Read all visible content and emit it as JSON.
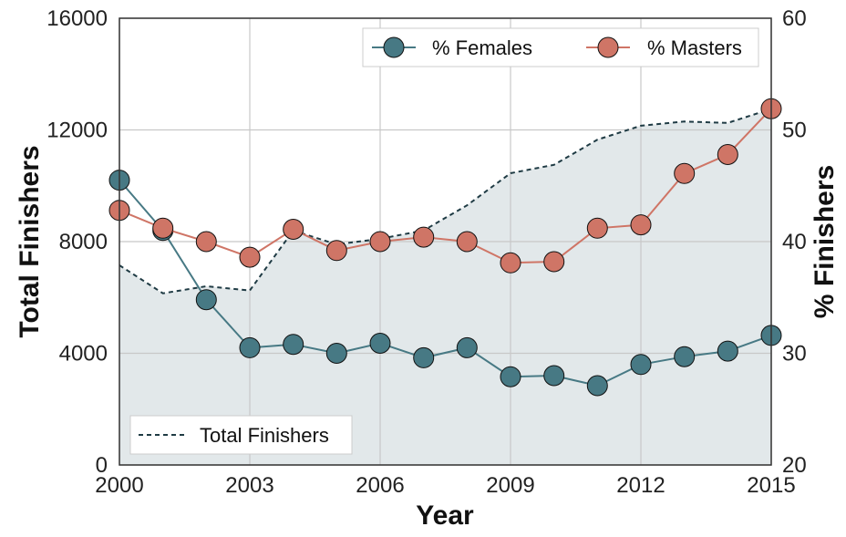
{
  "chart_data": {
    "type": "line",
    "x": [
      2000,
      2001,
      2002,
      2003,
      2004,
      2005,
      2006,
      2007,
      2008,
      2009,
      2010,
      2011,
      2012,
      2013,
      2014,
      2015
    ],
    "x_ticks": [
      "2000",
      "2003",
      "2006",
      "2009",
      "2012",
      "2015"
    ],
    "xlim": [
      2000,
      2015
    ],
    "xlabel": "Year",
    "ylabel_left": "Total Finishers",
    "ylabel_right": "% Finishers",
    "ylim_left": [
      0,
      16000
    ],
    "ylim_right": [
      20,
      60
    ],
    "y_ticks_left": [
      "0",
      "4000",
      "8000",
      "12000",
      "16000"
    ],
    "y_ticks_right": [
      "20",
      "30",
      "40",
      "50",
      "60"
    ],
    "grid": true,
    "series": [
      {
        "name": "Total Finishers",
        "axis": "left",
        "style": "dashed area",
        "color": "#1f3b44",
        "fill": "#e2e8ea",
        "values": [
          7150,
          6150,
          6400,
          6250,
          8400,
          7900,
          8100,
          8400,
          9300,
          10450,
          10750,
          11650,
          12150,
          12300,
          12250,
          12750
        ]
      },
      {
        "name": "% Females",
        "axis": "right",
        "color": "#477984",
        "values": [
          45.5,
          41.0,
          34.8,
          30.5,
          30.8,
          30.0,
          30.9,
          29.6,
          30.5,
          27.9,
          28.0,
          27.1,
          29.0,
          29.7,
          30.2,
          31.6
        ]
      },
      {
        "name": "% Masters",
        "axis": "right",
        "color": "#cf7566",
        "values": [
          42.8,
          41.2,
          40.0,
          38.6,
          41.1,
          39.2,
          40.0,
          40.4,
          40.0,
          38.1,
          38.2,
          41.2,
          41.5,
          46.1,
          47.8,
          51.9
        ]
      }
    ],
    "legends": [
      {
        "placement": "top-right",
        "entries": [
          "% Females",
          "% Masters"
        ]
      },
      {
        "placement": "bottom-left",
        "entries": [
          "Total Finishers"
        ]
      }
    ]
  }
}
